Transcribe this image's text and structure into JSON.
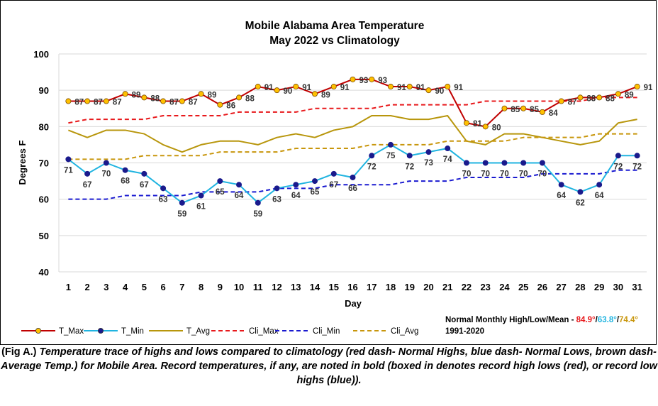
{
  "chart_data": {
    "type": "line",
    "title": "Mobile Alabama Area Temperature",
    "subtitle": "May 2022 vs Climatology",
    "xlabel": "Day",
    "ylabel": "Degrees F",
    "ylim": [
      40,
      100
    ],
    "yticks": [
      40,
      50,
      60,
      70,
      80,
      90,
      100
    ],
    "x": [
      1,
      2,
      3,
      4,
      5,
      6,
      7,
      8,
      9,
      10,
      11,
      12,
      13,
      14,
      15,
      16,
      17,
      18,
      19,
      20,
      21,
      22,
      23,
      24,
      25,
      26,
      27,
      28,
      29,
      30,
      31
    ],
    "grid": true,
    "legend_position": "bottom",
    "series": [
      {
        "name": "T_Max",
        "color": "#c00000",
        "marker_fill": "#ffc000",
        "style": "solid-marker",
        "labels": true,
        "values": [
          87,
          87,
          87,
          89,
          88,
          87,
          87,
          89,
          86,
          88,
          91,
          90,
          91,
          89,
          91,
          93,
          93,
          91,
          91,
          90,
          91,
          81,
          80,
          85,
          85,
          84,
          87,
          88,
          88,
          89,
          91
        ]
      },
      {
        "name": "T_Min",
        "color": "#20b4e0",
        "marker_fill": "#1a1a8c",
        "style": "solid-marker",
        "labels": true,
        "values": [
          71,
          67,
          70,
          68,
          67,
          63,
          59,
          61,
          65,
          64,
          59,
          63,
          64,
          65,
          67,
          66,
          72,
          75,
          72,
          73,
          74,
          70,
          70,
          70,
          70,
          70,
          64,
          62,
          64,
          72,
          72
        ]
      },
      {
        "name": "T_Avg",
        "color": "#b8960c",
        "style": "solid",
        "values": [
          79,
          77,
          79,
          79,
          78,
          75,
          73,
          75,
          76,
          76,
          75,
          77,
          78,
          77,
          79,
          80,
          83,
          83,
          82,
          82,
          83,
          76,
          75,
          78,
          78,
          77,
          76,
          75,
          76,
          81,
          82
        ]
      },
      {
        "name": "Cli_Max",
        "color": "#e8191c",
        "style": "dashed",
        "values": [
          81,
          82,
          82,
          82,
          82,
          83,
          83,
          83,
          83,
          84,
          84,
          84,
          84,
          85,
          85,
          85,
          85,
          86,
          86,
          86,
          86,
          86,
          87,
          87,
          87,
          87,
          87,
          87,
          88,
          88,
          88
        ]
      },
      {
        "name": "Cli_Min",
        "color": "#1a1ad0",
        "style": "dashed",
        "values": [
          60,
          60,
          60,
          61,
          61,
          61,
          61,
          62,
          62,
          62,
          62,
          63,
          63,
          63,
          64,
          64,
          64,
          64,
          65,
          65,
          65,
          66,
          66,
          66,
          66,
          67,
          67,
          67,
          67,
          68,
          68
        ]
      },
      {
        "name": "Cli_Avg",
        "color": "#c8960c",
        "style": "dashed",
        "values": [
          71,
          71,
          71,
          71,
          72,
          72,
          72,
          72,
          73,
          73,
          73,
          73,
          74,
          74,
          74,
          74,
          75,
          75,
          75,
          75,
          76,
          76,
          76,
          76,
          77,
          77,
          77,
          77,
          78,
          78,
          78
        ]
      }
    ]
  },
  "normals": {
    "label": "Normal Monthly High/Low/Mean - ",
    "high": "84.9°",
    "low": "63.8°",
    "mean": "74.4°",
    "sep": "/",
    "period": "1991-2020"
  },
  "caption": {
    "lead": "(Fig A.)",
    "body": " Temperature trace of highs and lows compared to climatology (red dash- Normal Highs, blue dash- Normal Lows, brown dash- Average Temp.) for Mobile Area. Record temperatures, if any, are noted in bold (boxed in denotes record high lows (red), or record low highs (blue))."
  }
}
